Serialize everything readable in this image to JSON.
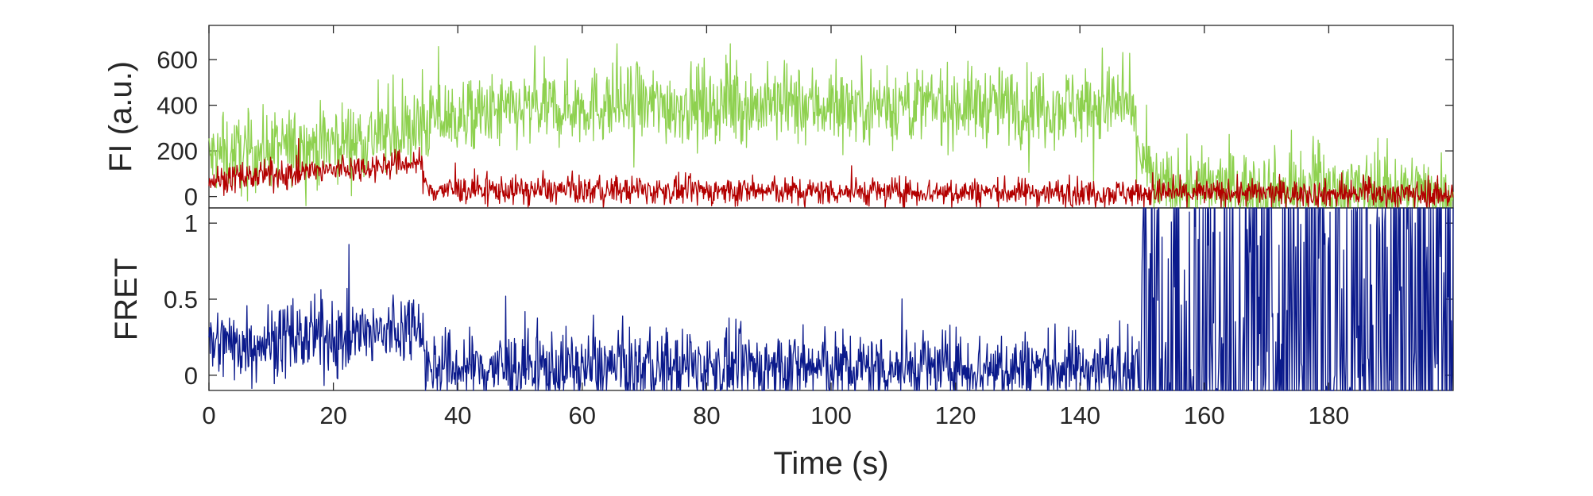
{
  "chart_data": [
    {
      "type": "line",
      "ylabel": "FI (a.u.)",
      "xlim": [
        0,
        200
      ],
      "ylim": [
        -50,
        750
      ],
      "yticks": [
        0,
        200,
        400,
        600
      ],
      "grid": false,
      "series": [
        {
          "color": "#8ed14f",
          "segments": [
            {
              "x": [
                0,
                34,
                36,
                60,
                148,
                150,
                152,
                200
              ],
              "mean": [
                170,
                290,
                340,
                400,
                400,
                180,
                40,
                20
              ]
            }
          ],
          "noise": 85
        },
        {
          "color": "#b30000",
          "segments": [
            {
              "x": [
                0,
                34,
                35,
                200
              ],
              "mean": [
                70,
                150,
                30,
                10
              ]
            }
          ],
          "noise": 30
        }
      ]
    },
    {
      "type": "line",
      "xlabel": "Time (s)",
      "ylabel": "FRET",
      "xlim": [
        0,
        200
      ],
      "ylim": [
        -0.1,
        1.1
      ],
      "xticks": [
        0,
        20,
        40,
        60,
        80,
        100,
        120,
        140,
        160,
        180
      ],
      "yticks": [
        0,
        0.5,
        1
      ],
      "ytick_labels": [
        "0",
        "0.5",
        "1"
      ],
      "grid": false,
      "series": [
        {
          "color": "#0b1a8c",
          "segments": [
            {
              "x": [
                0,
                30,
                34,
                35,
                149
              ],
              "mean": [
                0.2,
                0.28,
                0.38,
                0.05,
                0.05
              ]
            }
          ],
          "noise": 0.12,
          "regime_after": {
            "x": 149.5,
            "min": -0.1,
            "max": 1.1
          }
        }
      ]
    }
  ]
}
